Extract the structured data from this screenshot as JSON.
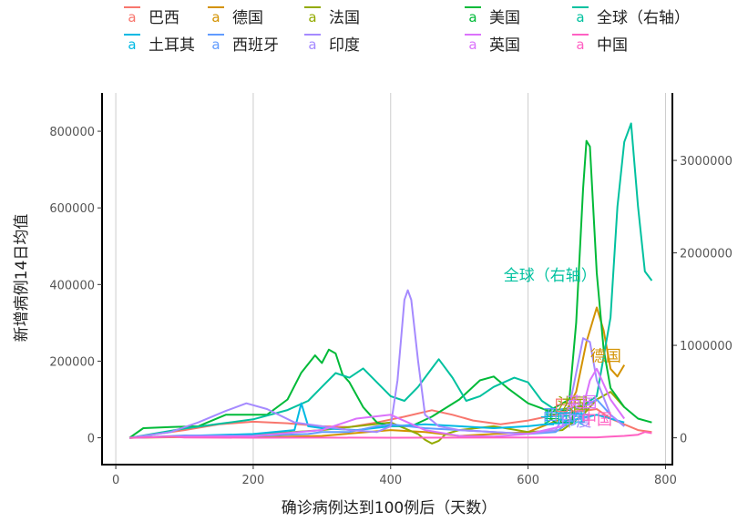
{
  "chart_data": {
    "type": "line",
    "title": "",
    "xlabel": "确诊病例达到100例后（天数）",
    "ylabel": "新增病例14日均值",
    "xlim": [
      -20,
      810
    ],
    "ylim": [
      -70000,
      900000
    ],
    "y2lim": [
      -290000,
      3730000
    ],
    "xticks": [
      0,
      200,
      400,
      600,
      800
    ],
    "yticks": [
      0,
      200000,
      400000,
      600000,
      800000
    ],
    "y2ticks": [
      0,
      1000000,
      2000000,
      3000000
    ],
    "grid": "vertical-major",
    "legend_position": "top",
    "legend_glyph": "a",
    "series": [
      {
        "name": "巴西",
        "color": "#F8766D",
        "axis": "left",
        "x": [
          20,
          100,
          150,
          200,
          250,
          300,
          340,
          380,
          420,
          460,
          490,
          520,
          560,
          600,
          640,
          680,
          700,
          720,
          760,
          780
        ],
        "y": [
          0,
          20000,
          35000,
          42000,
          38000,
          30000,
          28000,
          40000,
          55000,
          72000,
          60000,
          45000,
          35000,
          45000,
          60000,
          70000,
          75000,
          50000,
          20000,
          15000
        ]
      },
      {
        "name": "德国",
        "color": "#D39200",
        "axis": "left",
        "x": [
          20,
          100,
          200,
          300,
          400,
          450,
          500,
          550,
          600,
          650,
          670,
          685,
          700,
          710,
          720,
          730,
          740
        ],
        "y": [
          0,
          2000,
          1000,
          5000,
          20000,
          15000,
          5000,
          10000,
          15000,
          50000,
          120000,
          250000,
          340000,
          280000,
          180000,
          160000,
          190000
        ]
      },
      {
        "name": "法国",
        "color": "#93AA00",
        "axis": "left",
        "x": [
          20,
          100,
          200,
          300,
          400,
          440,
          450,
          460,
          470,
          480,
          500,
          550,
          600,
          650,
          680,
          700,
          720,
          740
        ],
        "y": [
          0,
          4000,
          8000,
          20000,
          40000,
          10000,
          -5000,
          -15000,
          -8000,
          10000,
          20000,
          30000,
          15000,
          20000,
          60000,
          100000,
          120000,
          80000
        ]
      },
      {
        "name": "美国",
        "color": "#00BA38",
        "axis": "left",
        "x": [
          20,
          40,
          80,
          120,
          160,
          190,
          220,
          250,
          270,
          290,
          300,
          310,
          320,
          330,
          340,
          360,
          380,
          400,
          430,
          460,
          500,
          530,
          550,
          570,
          600,
          630,
          660,
          670,
          680,
          685,
          690,
          700,
          710,
          720,
          740,
          760,
          780
        ],
        "y": [
          0,
          25000,
          28000,
          30000,
          60000,
          60000,
          60000,
          100000,
          170000,
          215000,
          195000,
          230000,
          220000,
          165000,
          145000,
          80000,
          40000,
          30000,
          30000,
          55000,
          100000,
          150000,
          160000,
          130000,
          90000,
          70000,
          100000,
          300000,
          650000,
          775000,
          760000,
          430000,
          230000,
          130000,
          80000,
          50000,
          40000
        ]
      },
      {
        "name": "全球（右轴）",
        "color": "#00C19F",
        "axis": "right",
        "x": [
          20,
          60,
          100,
          150,
          200,
          250,
          280,
          300,
          320,
          340,
          360,
          380,
          400,
          420,
          440,
          460,
          470,
          490,
          510,
          530,
          550,
          580,
          600,
          620,
          640,
          660,
          680,
          700,
          720,
          730,
          740,
          750,
          760,
          770,
          780
        ],
        "y": [
          0,
          50000,
          100000,
          150000,
          200000,
          300000,
          400000,
          550000,
          700000,
          650000,
          750000,
          600000,
          450000,
          400000,
          550000,
          750000,
          850000,
          650000,
          400000,
          450000,
          550000,
          650000,
          600000,
          400000,
          300000,
          320000,
          350000,
          450000,
          1300000,
          2500000,
          3200000,
          3400000,
          2500000,
          1800000,
          1700000
        ]
      },
      {
        "name": "土耳其",
        "color": "#00B9E3",
        "axis": "left",
        "x": [
          20,
          100,
          200,
          260,
          270,
          275,
          280,
          300,
          350,
          400,
          450,
          500,
          550,
          600,
          650,
          700,
          740
        ],
        "y": [
          0,
          5000,
          10000,
          20000,
          90000,
          60000,
          30000,
          25000,
          20000,
          30000,
          35000,
          30000,
          25000,
          30000,
          40000,
          60000,
          40000
        ]
      },
      {
        "name": "西班牙",
        "color": "#619CFF",
        "axis": "left",
        "x": [
          20,
          100,
          200,
          280,
          300,
          340,
          380,
          400,
          450,
          500,
          550,
          600,
          640,
          660,
          680,
          700,
          720,
          740
        ],
        "y": [
          0,
          6000,
          5000,
          10000,
          15000,
          15000,
          30000,
          35000,
          25000,
          20000,
          15000,
          10000,
          15000,
          40000,
          80000,
          100000,
          60000,
          30000
        ]
      },
      {
        "name": "印度",
        "color": "#A58AFF",
        "axis": "left",
        "x": [
          20,
          80,
          120,
          160,
          190,
          220,
          260,
          300,
          340,
          380,
          400,
          410,
          420,
          425,
          430,
          440,
          450,
          470,
          500,
          550,
          600,
          640,
          660,
          680,
          690,
          700,
          720,
          740
        ],
        "y": [
          0,
          15000,
          40000,
          70000,
          90000,
          75000,
          40000,
          30000,
          20000,
          15000,
          30000,
          150000,
          360000,
          385000,
          360000,
          200000,
          60000,
          30000,
          20000,
          15000,
          10000,
          20000,
          80000,
          260000,
          250000,
          150000,
          60000,
          30000
        ]
      },
      {
        "name": "英国",
        "color": "#DB72FB",
        "axis": "left",
        "x": [
          20,
          100,
          200,
          300,
          350,
          400,
          450,
          500,
          550,
          600,
          650,
          680,
          690,
          700,
          720,
          740
        ],
        "y": [
          0,
          3000,
          5000,
          20000,
          50000,
          60000,
          20000,
          5000,
          3000,
          10000,
          30000,
          80000,
          150000,
          180000,
          100000,
          50000
        ]
      },
      {
        "name": "中国",
        "color": "#FF61C3",
        "axis": "left",
        "x": [
          20,
          80,
          100,
          200,
          300,
          400,
          500,
          600,
          700,
          720,
          740,
          760,
          770,
          780
        ],
        "y": [
          0,
          3000,
          500,
          200,
          300,
          200,
          300,
          500,
          1000,
          3000,
          5000,
          8000,
          15000,
          12000
        ]
      }
    ],
    "annotations": [
      {
        "text": "全球（右轴）",
        "color": "#00C19F",
        "x": 632,
        "y2": 1700000
      },
      {
        "text": "德国",
        "color": "#D39200",
        "x": 713,
        "y": 200000
      },
      {
        "text": "美国",
        "color": "#00BA38",
        "x": 645,
        "y": 40000
      },
      {
        "text": "西班牙",
        "color": "#619CFF",
        "x": 655,
        "y": 45000
      },
      {
        "text": "土耳其",
        "color": "#00B9E3",
        "x": 650,
        "y": 35000
      },
      {
        "text": "巴西",
        "color": "#F8766D",
        "x": 660,
        "y": 70000
      },
      {
        "text": "法国",
        "color": "#93AA00",
        "x": 665,
        "y": 75000
      },
      {
        "text": "英国",
        "color": "#DB72FB",
        "x": 678,
        "y": 78000
      },
      {
        "text": "印度",
        "color": "#A58AFF",
        "x": 670,
        "y": 30000
      },
      {
        "text": "中国",
        "color": "#FF61C3",
        "x": 700,
        "y": 35000
      }
    ]
  }
}
